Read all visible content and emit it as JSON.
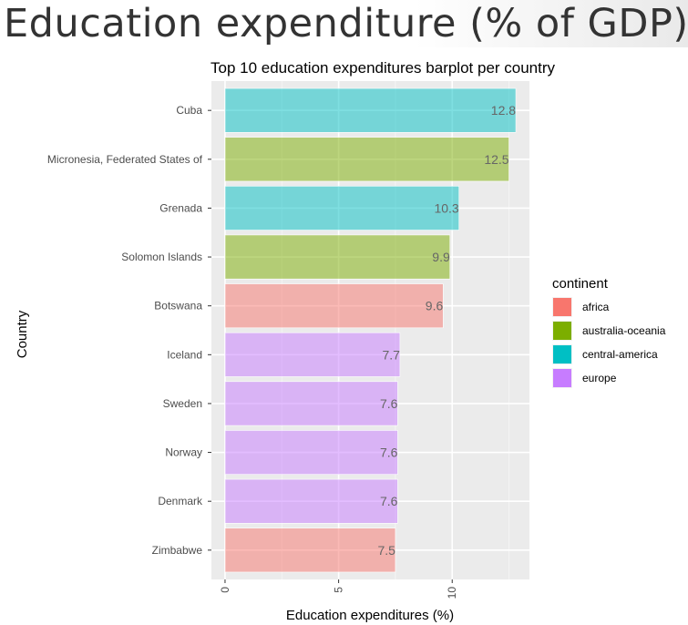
{
  "page": {
    "title": "Education expenditure (% of GDP)"
  },
  "chart_data": {
    "type": "bar",
    "orientation": "horizontal",
    "title": "Top 10 education expenditures barplot per country",
    "xlabel": "Education expenditures (%)",
    "ylabel": "Country",
    "xlim": [
      -0.6,
      13.4
    ],
    "xticks": [
      0,
      5,
      10
    ],
    "grid": true,
    "legend_title": "continent",
    "legend_position": "right",
    "categories": [
      "Cuba",
      "Micronesia, Federated States of",
      "Grenada",
      "Solomon Islands",
      "Botswana",
      "Iceland",
      "Sweden",
      "Norway",
      "Denmark",
      "Zimbabwe"
    ],
    "values": [
      12.8,
      12.5,
      10.3,
      9.9,
      9.6,
      7.7,
      7.6,
      7.6,
      7.6,
      7.5
    ],
    "value_labels": [
      "12.8",
      "12.5",
      "10.3",
      "9.9",
      "9.6",
      "7.7",
      "7.6",
      "7.6",
      "7.6",
      "7.5"
    ],
    "continents": [
      "central-america",
      "australia-oceania",
      "central-america",
      "australia-oceania",
      "africa",
      "europe",
      "europe",
      "europe",
      "europe",
      "africa"
    ],
    "legend": [
      {
        "name": "africa",
        "color": "#F8766D"
      },
      {
        "name": "australia-oceania",
        "color": "#7CAE00"
      },
      {
        "name": "central-america",
        "color": "#00BFC4"
      },
      {
        "name": "europe",
        "color": "#C77CFF"
      }
    ],
    "bar_opacity": 0.5,
    "panel_background": "#EBEBEB",
    "gridline_color": "#FFFFFF",
    "label_color": "#666666"
  }
}
